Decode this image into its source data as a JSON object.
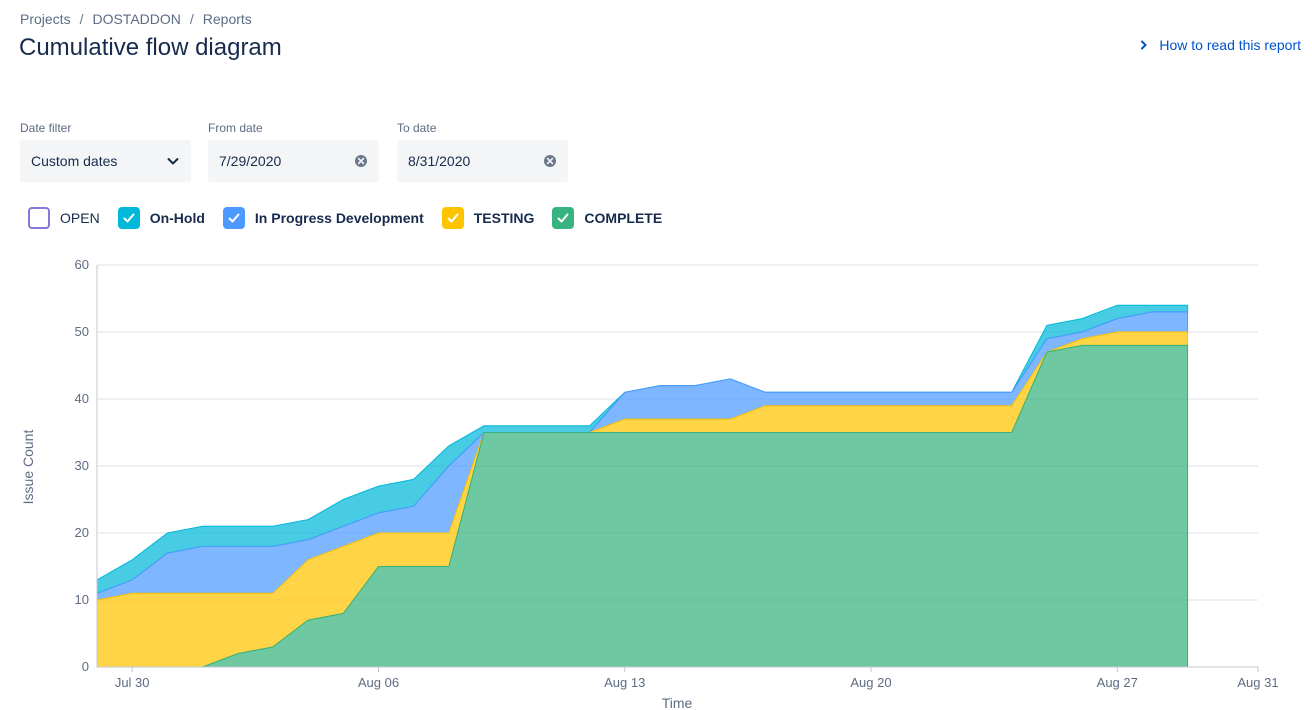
{
  "breadcrumb": {
    "items": [
      "Projects",
      "DOSTADDON",
      "Reports"
    ],
    "separator": "/"
  },
  "page": {
    "title": "Cumulative flow diagram"
  },
  "help_link": {
    "label": "How to read this report",
    "icon": "chevron-right-icon"
  },
  "filters": {
    "date_filter": {
      "label": "Date filter",
      "value": "Custom dates",
      "icon": "chevron-down-icon"
    },
    "from_date": {
      "label": "From date",
      "value": "7/29/2020",
      "icon": "clear-icon"
    },
    "to_date": {
      "label": "To date",
      "value": "8/31/2020",
      "icon": "clear-icon"
    }
  },
  "legend": [
    {
      "label": "OPEN",
      "checked": false,
      "color": "#8777d9"
    },
    {
      "label": "On-Hold",
      "checked": true,
      "color": "#00b8d9"
    },
    {
      "label": "In Progress Development",
      "checked": true,
      "color": "#4c9aff"
    },
    {
      "label": "TESTING",
      "checked": true,
      "color": "#ffc400"
    },
    {
      "label": "COMPLETE",
      "checked": true,
      "color": "#36b37e"
    }
  ],
  "chart_data": {
    "type": "area",
    "stacked": true,
    "title": "",
    "xlabel": "Time",
    "ylabel": "Issue Count",
    "xlim": [
      "2020-07-29",
      "2020-08-31"
    ],
    "ylim": [
      0,
      60
    ],
    "yticks": [
      0,
      10,
      20,
      30,
      40,
      50,
      60
    ],
    "xticks": [
      {
        "date": "2020-07-30",
        "label": "Jul 30"
      },
      {
        "date": "2020-08-06",
        "label": "Aug 06"
      },
      {
        "date": "2020-08-13",
        "label": "Aug 13"
      },
      {
        "date": "2020-08-20",
        "label": "Aug 20"
      },
      {
        "date": "2020-08-27",
        "label": "Aug 27"
      },
      {
        "date": "2020-08-31",
        "label": "Aug 31"
      }
    ],
    "grid": true,
    "x": [
      "2020-07-29",
      "2020-07-30",
      "2020-07-31",
      "2020-08-01",
      "2020-08-02",
      "2020-08-03",
      "2020-08-04",
      "2020-08-05",
      "2020-08-06",
      "2020-08-07",
      "2020-08-08",
      "2020-08-09",
      "2020-08-10",
      "2020-08-11",
      "2020-08-12",
      "2020-08-13",
      "2020-08-14",
      "2020-08-15",
      "2020-08-16",
      "2020-08-17",
      "2020-08-18",
      "2020-08-19",
      "2020-08-20",
      "2020-08-21",
      "2020-08-22",
      "2020-08-23",
      "2020-08-24",
      "2020-08-25",
      "2020-08-26",
      "2020-08-27",
      "2020-08-28",
      "2020-08-29"
    ],
    "series": [
      {
        "name": "COMPLETE",
        "color": "#36b37e",
        "values": [
          0,
          0,
          0,
          0,
          2,
          3,
          7,
          8,
          15,
          15,
          15,
          35,
          35,
          35,
          35,
          35,
          35,
          35,
          35,
          35,
          35,
          35,
          35,
          35,
          35,
          35,
          35,
          47,
          48,
          48,
          48,
          48
        ]
      },
      {
        "name": "TESTING",
        "color": "#ffc400",
        "values": [
          10,
          11,
          11,
          11,
          9,
          8,
          9,
          10,
          5,
          5,
          5,
          0,
          0,
          0,
          0,
          2,
          2,
          2,
          2,
          4,
          4,
          4,
          4,
          4,
          4,
          4,
          4,
          0,
          1,
          2,
          2,
          2
        ]
      },
      {
        "name": "In Progress Development",
        "color": "#4c9aff",
        "values": [
          1,
          2,
          6,
          7,
          7,
          7,
          3,
          3,
          3,
          4,
          10,
          0,
          0,
          0,
          0,
          4,
          5,
          5,
          6,
          2,
          2,
          2,
          2,
          2,
          2,
          2,
          2,
          2,
          1,
          2,
          3,
          3
        ]
      },
      {
        "name": "On-Hold",
        "color": "#00b8d9",
        "values": [
          2,
          3,
          3,
          3,
          3,
          3,
          3,
          4,
          4,
          4,
          3,
          1,
          1,
          1,
          1,
          0,
          0,
          0,
          0,
          0,
          0,
          0,
          0,
          0,
          0,
          0,
          0,
          2,
          2,
          2,
          1,
          1
        ]
      }
    ]
  }
}
